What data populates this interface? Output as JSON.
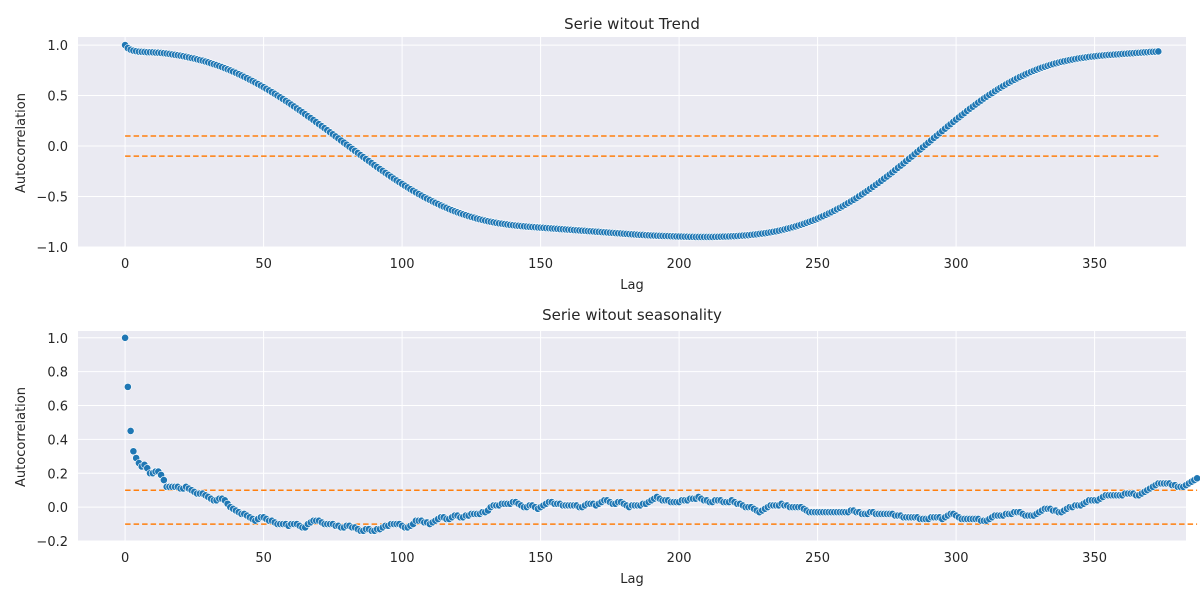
{
  "chart_data": [
    {
      "type": "scatter",
      "title": "Serie witout Trend",
      "xlabel": "Lag",
      "ylabel": "Autocorrelation",
      "xlim": [
        -17,
        383
      ],
      "ylim": [
        -1.0,
        1.08
      ],
      "xticks": [
        0,
        50,
        100,
        150,
        200,
        250,
        300,
        350
      ],
      "yticks": [
        -1.0,
        -0.5,
        0.0,
        0.5,
        1.0
      ],
      "ytick_labels": [
        "−1.0",
        "−0.5",
        "0.0",
        "0.5",
        "1.0"
      ],
      "grid": true,
      "confidence_band": [
        -0.1,
        0.1
      ],
      "confidence_color": "#ff7f0e",
      "point_color": "#1f77b4",
      "series": [
        {
          "x_start": 0,
          "x_step": 1,
          "values": [
            1.0,
            0.97,
            0.955,
            0.945,
            0.94,
            0.935,
            0.933,
            0.932,
            0.93,
            0.929,
            0.928,
            0.926,
            0.925,
            0.922,
            0.92,
            0.916,
            0.912,
            0.908,
            0.904,
            0.9,
            0.895,
            0.89,
            0.884,
            0.878,
            0.872,
            0.866,
            0.859,
            0.852,
            0.845,
            0.837,
            0.829,
            0.82,
            0.811,
            0.802,
            0.792,
            0.782,
            0.771,
            0.76,
            0.749,
            0.737,
            0.725,
            0.712,
            0.699,
            0.686,
            0.672,
            0.658,
            0.644,
            0.629,
            0.614,
            0.599,
            0.583,
            0.567,
            0.551,
            0.534,
            0.517,
            0.5,
            0.483,
            0.465,
            0.447,
            0.429,
            0.411,
            0.392,
            0.373,
            0.354,
            0.335,
            0.316,
            0.296,
            0.277,
            0.257,
            0.237,
            0.217,
            0.197,
            0.177,
            0.157,
            0.136,
            0.116,
            0.095,
            0.075,
            0.054,
            0.034,
            0.013,
            -0.007,
            -0.028,
            -0.048,
            -0.068,
            -0.089,
            -0.109,
            -0.129,
            -0.149,
            -0.169,
            -0.189,
            -0.208,
            -0.228,
            -0.247,
            -0.266,
            -0.285,
            -0.303,
            -0.322,
            -0.34,
            -0.358,
            -0.375,
            -0.393,
            -0.41,
            -0.427,
            -0.443,
            -0.459,
            -0.475,
            -0.49,
            -0.506,
            -0.52,
            -0.534,
            -0.548,
            -0.562,
            -0.575,
            -0.588,
            -0.6,
            -0.612,
            -0.624,
            -0.635,
            -0.646,
            -0.656,
            -0.666,
            -0.676,
            -0.685,
            -0.694,
            -0.702,
            -0.71,
            -0.718,
            -0.725,
            -0.732,
            -0.738,
            -0.744,
            -0.75,
            -0.755,
            -0.76,
            -0.765,
            -0.769,
            -0.773,
            -0.777,
            -0.781,
            -0.784,
            -0.787,
            -0.79,
            -0.793,
            -0.795,
            -0.798,
            -0.8,
            -0.802,
            -0.804,
            -0.806,
            -0.808,
            -0.81,
            -0.812,
            -0.814,
            -0.816,
            -0.818,
            -0.82,
            -0.822,
            -0.824,
            -0.826,
            -0.828,
            -0.83,
            -0.832,
            -0.834,
            -0.836,
            -0.838,
            -0.84,
            -0.842,
            -0.844,
            -0.846,
            -0.848,
            -0.85,
            -0.852,
            -0.854,
            -0.856,
            -0.858,
            -0.86,
            -0.862,
            -0.864,
            -0.866,
            -0.868,
            -0.87,
            -0.872,
            -0.874,
            -0.876,
            -0.878,
            -0.88,
            -0.881,
            -0.883,
            -0.884,
            -0.886,
            -0.887,
            -0.888,
            -0.889,
            -0.89,
            -0.891,
            -0.892,
            -0.893,
            -0.894,
            -0.895,
            -0.896,
            -0.897,
            -0.898,
            -0.898,
            -0.899,
            -0.899,
            -0.9,
            -0.9,
            -0.9,
            -0.9,
            -0.9,
            -0.9,
            -0.9,
            -0.899,
            -0.899,
            -0.898,
            -0.897,
            -0.896,
            -0.895,
            -0.894,
            -0.893,
            -0.891,
            -0.889,
            -0.887,
            -0.885,
            -0.883,
            -0.88,
            -0.877,
            -0.874,
            -0.871,
            -0.867,
            -0.863,
            -0.859,
            -0.854,
            -0.849,
            -0.844,
            -0.838,
            -0.832,
            -0.826,
            -0.819,
            -0.812,
            -0.804,
            -0.796,
            -0.788,
            -0.779,
            -0.77,
            -0.76,
            -0.75,
            -0.74,
            -0.729,
            -0.718,
            -0.706,
            -0.694,
            -0.681,
            -0.668,
            -0.655,
            -0.641,
            -0.627,
            -0.612,
            -0.597,
            -0.581,
            -0.565,
            -0.549,
            -0.532,
            -0.515,
            -0.497,
            -0.479,
            -0.461,
            -0.442,
            -0.423,
            -0.404,
            -0.384,
            -0.364,
            -0.344,
            -0.323,
            -0.302,
            -0.281,
            -0.26,
            -0.238,
            -0.216,
            -0.194,
            -0.172,
            -0.149,
            -0.127,
            -0.104,
            -0.081,
            -0.058,
            -0.035,
            -0.012,
            0.011,
            0.034,
            0.057,
            0.08,
            0.103,
            0.126,
            0.149,
            0.172,
            0.195,
            0.217,
            0.24,
            0.262,
            0.284,
            0.306,
            0.327,
            0.349,
            0.37,
            0.39,
            0.411,
            0.431,
            0.45,
            0.47,
            0.489,
            0.507,
            0.525,
            0.543,
            0.561,
            0.578,
            0.594,
            0.61,
            0.626,
            0.641,
            0.656,
            0.67,
            0.684,
            0.697,
            0.71,
            0.722,
            0.734,
            0.745,
            0.756,
            0.767,
            0.777,
            0.786,
            0.795,
            0.804,
            0.812,
            0.82,
            0.827,
            0.834,
            0.84,
            0.846,
            0.852,
            0.857,
            0.862,
            0.867,
            0.871,
            0.875,
            0.879,
            0.883,
            0.886,
            0.889,
            0.892,
            0.895,
            0.897,
            0.9,
            0.902,
            0.904,
            0.906,
            0.908,
            0.91,
            0.912,
            0.914,
            0.916,
            0.918,
            0.92,
            0.922,
            0.924,
            0.926,
            0.928,
            0.93,
            0.932,
            0.933,
            0.935,
            0.937
          ]
        }
      ]
    },
    {
      "type": "scatter",
      "title": "Serie witout seasonality",
      "xlabel": "Lag",
      "ylabel": "Autocorrelation",
      "xlim": [
        -17,
        383
      ],
      "ylim": [
        -0.2,
        1.04
      ],
      "xticks": [
        0,
        50,
        100,
        150,
        200,
        250,
        300,
        350
      ],
      "yticks": [
        -0.2,
        0.0,
        0.2,
        0.4,
        0.6,
        0.8,
        1.0
      ],
      "ytick_labels": [
        "−0.2",
        "0.0",
        "0.2",
        "0.4",
        "0.6",
        "0.8",
        "1.0"
      ],
      "grid": true,
      "confidence_band": [
        -0.1,
        0.1
      ],
      "confidence_color": "#ff7f0e",
      "point_color": "#1f77b4",
      "series": [
        {
          "x_start": 0,
          "x_step": 1,
          "values": [
            1.0,
            0.71,
            0.45,
            0.33,
            0.29,
            0.26,
            0.24,
            0.25,
            0.23,
            0.2,
            0.2,
            0.21,
            0.21,
            0.19,
            0.16,
            0.12,
            0.12,
            0.12,
            0.12,
            0.12,
            0.11,
            0.11,
            0.12,
            0.11,
            0.1,
            0.09,
            0.08,
            0.08,
            0.08,
            0.07,
            0.06,
            0.05,
            0.04,
            0.04,
            0.05,
            0.05,
            0.04,
            0.02,
            0.0,
            -0.01,
            -0.02,
            -0.03,
            -0.04,
            -0.04,
            -0.05,
            -0.06,
            -0.07,
            -0.08,
            -0.07,
            -0.06,
            -0.06,
            -0.07,
            -0.08,
            -0.08,
            -0.09,
            -0.1,
            -0.1,
            -0.1,
            -0.1,
            -0.11,
            -0.1,
            -0.1,
            -0.1,
            -0.11,
            -0.12,
            -0.12,
            -0.1,
            -0.09,
            -0.08,
            -0.08,
            -0.08,
            -0.09,
            -0.1,
            -0.1,
            -0.1,
            -0.1,
            -0.11,
            -0.11,
            -0.12,
            -0.12,
            -0.11,
            -0.11,
            -0.12,
            -0.12,
            -0.13,
            -0.14,
            -0.14,
            -0.13,
            -0.13,
            -0.14,
            -0.14,
            -0.13,
            -0.13,
            -0.12,
            -0.11,
            -0.11,
            -0.1,
            -0.1,
            -0.1,
            -0.1,
            -0.11,
            -0.12,
            -0.12,
            -0.11,
            -0.1,
            -0.08,
            -0.08,
            -0.08,
            -0.09,
            -0.09,
            -0.1,
            -0.09,
            -0.08,
            -0.07,
            -0.06,
            -0.06,
            -0.07,
            -0.07,
            -0.06,
            -0.05,
            -0.05,
            -0.06,
            -0.06,
            -0.05,
            -0.05,
            -0.04,
            -0.04,
            -0.04,
            -0.04,
            -0.03,
            -0.03,
            -0.02,
            0.0,
            0.01,
            0.01,
            0.01,
            0.02,
            0.02,
            0.02,
            0.02,
            0.03,
            0.03,
            0.02,
            0.01,
            0.0,
            0.0,
            0.01,
            0.01,
            0.0,
            -0.01,
            0.0,
            0.01,
            0.02,
            0.03,
            0.03,
            0.02,
            0.02,
            0.02,
            0.01,
            0.01,
            0.01,
            0.01,
            0.01,
            0.01,
            0.0,
            0.0,
            0.01,
            0.02,
            0.02,
            0.02,
            0.01,
            0.02,
            0.03,
            0.04,
            0.04,
            0.03,
            0.02,
            0.02,
            0.03,
            0.03,
            0.02,
            0.01,
            0.0,
            0.01,
            0.01,
            0.01,
            0.01,
            0.02,
            0.02,
            0.03,
            0.04,
            0.05,
            0.06,
            0.05,
            0.04,
            0.04,
            0.04,
            0.03,
            0.03,
            0.03,
            0.03,
            0.04,
            0.04,
            0.04,
            0.05,
            0.05,
            0.05,
            0.06,
            0.05,
            0.04,
            0.04,
            0.03,
            0.03,
            0.04,
            0.04,
            0.04,
            0.03,
            0.03,
            0.03,
            0.04,
            0.03,
            0.02,
            0.02,
            0.01,
            0.0,
            0.0,
            0.0,
            -0.01,
            -0.02,
            -0.03,
            -0.02,
            -0.01,
            0.0,
            0.01,
            0.01,
            0.01,
            0.01,
            0.02,
            0.01,
            0.01,
            0.0,
            0.0,
            0.0,
            0.0,
            0.0,
            -0.01,
            -0.02,
            -0.03,
            -0.03,
            -0.03,
            -0.03,
            -0.03,
            -0.03,
            -0.03,
            -0.03,
            -0.03,
            -0.03,
            -0.03,
            -0.03,
            -0.03,
            -0.03,
            -0.03,
            -0.02,
            -0.02,
            -0.03,
            -0.03,
            -0.04,
            -0.04,
            -0.04,
            -0.03,
            -0.03,
            -0.04,
            -0.04,
            -0.04,
            -0.04,
            -0.04,
            -0.04,
            -0.04,
            -0.05,
            -0.05,
            -0.05,
            -0.06,
            -0.06,
            -0.06,
            -0.06,
            -0.06,
            -0.06,
            -0.07,
            -0.07,
            -0.07,
            -0.07,
            -0.06,
            -0.06,
            -0.06,
            -0.06,
            -0.07,
            -0.06,
            -0.05,
            -0.04,
            -0.04,
            -0.05,
            -0.06,
            -0.07,
            -0.07,
            -0.07,
            -0.07,
            -0.07,
            -0.07,
            -0.07,
            -0.08,
            -0.08,
            -0.08,
            -0.07,
            -0.06,
            -0.05,
            -0.05,
            -0.05,
            -0.05,
            -0.04,
            -0.04,
            -0.04,
            -0.03,
            -0.03,
            -0.03,
            -0.04,
            -0.05,
            -0.05,
            -0.05,
            -0.05,
            -0.04,
            -0.03,
            -0.02,
            -0.01,
            -0.01,
            -0.01,
            -0.02,
            -0.02,
            -0.03,
            -0.03,
            -0.02,
            -0.01,
            0.0,
            0.0,
            0.01,
            0.01,
            0.01,
            0.02,
            0.03,
            0.04,
            0.04,
            0.04,
            0.04,
            0.05,
            0.06,
            0.07,
            0.07,
            0.07,
            0.07,
            0.07,
            0.07,
            0.07,
            0.08,
            0.08,
            0.08,
            0.08,
            0.07,
            0.07,
            0.08,
            0.09,
            0.1,
            0.11,
            0.12,
            0.13,
            0.14,
            0.14,
            0.14,
            0.14,
            0.14,
            0.13,
            0.13,
            0.12,
            0.12,
            0.12,
            0.13,
            0.14,
            0.15,
            0.16,
            0.17
          ]
        }
      ]
    }
  ]
}
